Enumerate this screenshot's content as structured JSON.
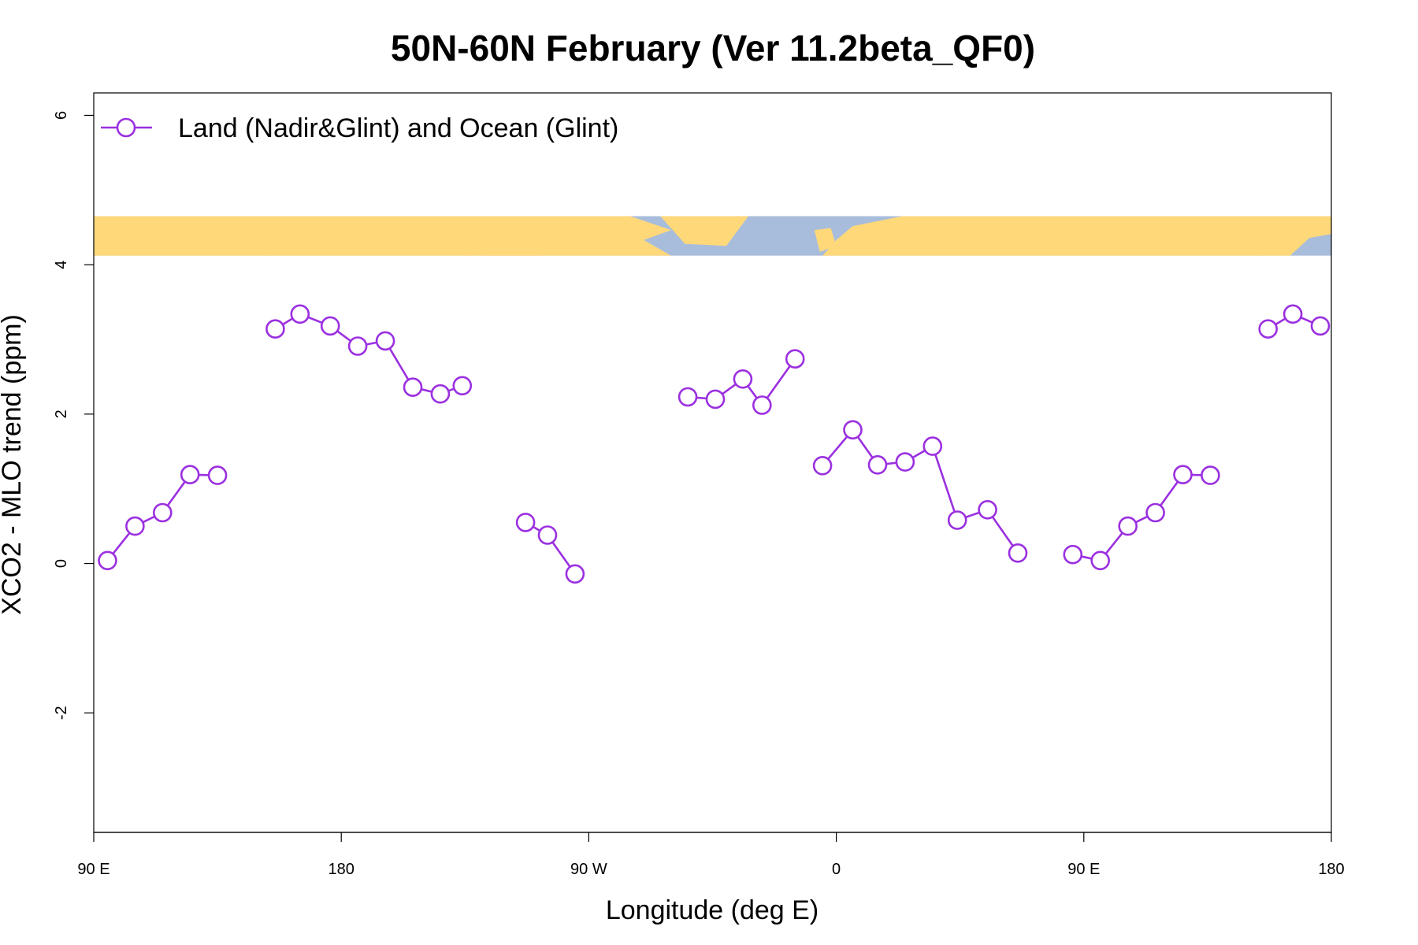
{
  "chart_data": {
    "type": "line",
    "title": "50N-60N February (Ver 11.2beta_QF0)",
    "xlabel": "Longitude (deg E)",
    "ylabel": "XCO2 - MLO trend (ppm)",
    "xlim": [
      90,
      540
    ],
    "ylim": [
      -3.6,
      6.3
    ],
    "x_ticks": [
      {
        "value": 90,
        "label": "90 E"
      },
      {
        "value": 180,
        "label": "180"
      },
      {
        "value": 270,
        "label": "90 W"
      },
      {
        "value": 360,
        "label": "0"
      },
      {
        "value": 450,
        "label": "90 E"
      },
      {
        "value": 540,
        "label": "180"
      }
    ],
    "y_ticks": [
      {
        "value": -2,
        "label": "-2"
      },
      {
        "value": 0,
        "label": "0"
      },
      {
        "value": 2,
        "label": "2"
      },
      {
        "value": 4,
        "label": "4"
      },
      {
        "value": 6,
        "label": "6"
      }
    ],
    "legend": {
      "position": "top-left",
      "entries": [
        "Land (Nadir&Glint) and Ocean (Glint)"
      ]
    },
    "grid": false,
    "map_strip": {
      "y_range": [
        4.12,
        4.65
      ],
      "land_color": "#ffd87a",
      "ocean_color": "#a8bddb"
    },
    "series": [
      {
        "name": "Land (Nadir&Glint) and Ocean (Glint)",
        "color": "#9b30e0",
        "segments": [
          [
            [
              95,
              0.04
            ],
            [
              105,
              0.5
            ],
            [
              115,
              0.68
            ],
            [
              125,
              1.19
            ],
            [
              135,
              1.18
            ]
          ],
          [
            [
              156,
              3.14
            ],
            [
              165,
              3.34
            ],
            [
              176,
              3.18
            ],
            [
              186,
              2.91
            ],
            [
              196,
              2.98
            ],
            [
              206,
              2.36
            ],
            [
              216,
              2.27
            ],
            [
              224,
              2.38
            ]
          ],
          [
            [
              247,
              0.55
            ],
            [
              255,
              0.38
            ],
            [
              265,
              -0.14
            ]
          ],
          [
            [
              306,
              2.23
            ],
            [
              316,
              2.2
            ],
            [
              326,
              2.47
            ],
            [
              333,
              2.12
            ],
            [
              345,
              2.74
            ]
          ],
          [
            [
              355,
              1.31
            ],
            [
              366,
              1.79
            ],
            [
              375,
              1.32
            ],
            [
              385,
              1.36
            ],
            [
              395,
              1.57
            ],
            [
              404,
              0.58
            ],
            [
              415,
              0.72
            ],
            [
              426,
              0.14
            ]
          ],
          [
            [
              446,
              0.12
            ],
            [
              456,
              0.04
            ],
            [
              466,
              0.5
            ],
            [
              476,
              0.68
            ],
            [
              486,
              1.19
            ],
            [
              496,
              1.18
            ]
          ],
          [
            [
              517,
              3.14
            ],
            [
              526,
              3.34
            ],
            [
              536,
              3.18
            ]
          ]
        ]
      }
    ]
  }
}
